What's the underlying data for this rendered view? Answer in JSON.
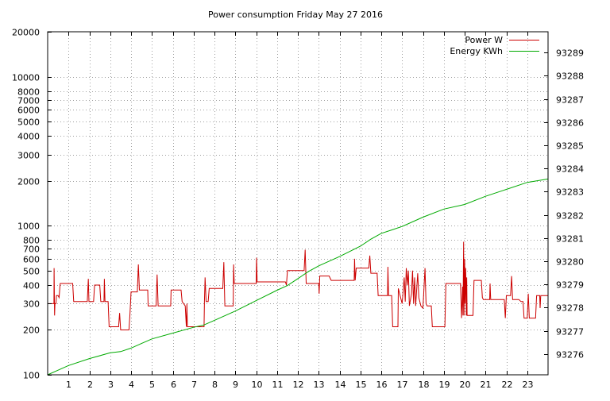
{
  "chart_data": {
    "type": "line",
    "title": "Power consumption Friday May 27 2016",
    "xlabel": "",
    "ylabel": "",
    "y2label": "",
    "xlim": [
      0,
      24
    ],
    "ylim": [
      100,
      20000
    ],
    "yscale": "log",
    "y2lim": [
      93275.1,
      93289.9
    ],
    "grid": true,
    "legend_position": "top-right",
    "x_ticks": [
      1,
      2,
      3,
      4,
      5,
      6,
      7,
      8,
      9,
      10,
      11,
      12,
      13,
      14,
      15,
      16,
      17,
      18,
      19,
      20,
      21,
      22,
      23
    ],
    "y_ticks": [
      100,
      200,
      300,
      400,
      500,
      600,
      700,
      800,
      1000,
      2000,
      3000,
      4000,
      5000,
      6000,
      7000,
      8000,
      10000,
      20000
    ],
    "y2_ticks": [
      93276,
      93277,
      93278,
      93279,
      93280,
      93281,
      93282,
      93283,
      93284,
      93285,
      93286,
      93287,
      93288,
      93289
    ],
    "series": [
      {
        "name": "Power W",
        "axis": "left",
        "color": "#cc0000",
        "points": [
          [
            0.0,
            300
          ],
          [
            0.3,
            300
          ],
          [
            0.31,
            520
          ],
          [
            0.33,
            250
          ],
          [
            0.35,
            300
          ],
          [
            0.4,
            300
          ],
          [
            0.42,
            340
          ],
          [
            0.5,
            340
          ],
          [
            0.55,
            330
          ],
          [
            0.6,
            410
          ],
          [
            1.0,
            410
          ],
          [
            1.2,
            410
          ],
          [
            1.25,
            310
          ],
          [
            1.9,
            310
          ],
          [
            1.95,
            440
          ],
          [
            1.98,
            310
          ],
          [
            2.2,
            310
          ],
          [
            2.25,
            400
          ],
          [
            2.5,
            400
          ],
          [
            2.55,
            310
          ],
          [
            2.7,
            310
          ],
          [
            2.72,
            440
          ],
          [
            2.75,
            310
          ],
          [
            2.9,
            310
          ],
          [
            2.95,
            210
          ],
          [
            3.4,
            210
          ],
          [
            3.45,
            260
          ],
          [
            3.5,
            200
          ],
          [
            3.9,
            200
          ],
          [
            3.95,
            260
          ],
          [
            4.0,
            360
          ],
          [
            4.3,
            360
          ],
          [
            4.35,
            550
          ],
          [
            4.4,
            370
          ],
          [
            4.8,
            370
          ],
          [
            4.82,
            290
          ],
          [
            5.2,
            290
          ],
          [
            5.25,
            470
          ],
          [
            5.3,
            290
          ],
          [
            5.9,
            290
          ],
          [
            5.92,
            370
          ],
          [
            6.4,
            370
          ],
          [
            6.45,
            310
          ],
          [
            6.6,
            290
          ],
          [
            6.65,
            210
          ],
          [
            6.68,
            300
          ],
          [
            6.7,
            210
          ],
          [
            7.5,
            210
          ],
          [
            7.52,
            310
          ],
          [
            7.55,
            450
          ],
          [
            7.6,
            310
          ],
          [
            7.7,
            310
          ],
          [
            7.75,
            380
          ],
          [
            8.4,
            380
          ],
          [
            8.45,
            570
          ],
          [
            8.5,
            290
          ],
          [
            8.9,
            290
          ],
          [
            8.92,
            550
          ],
          [
            8.95,
            410
          ],
          [
            9.5,
            410
          ],
          [
            10.0,
            410
          ],
          [
            10.02,
            610
          ],
          [
            10.05,
            420
          ],
          [
            11.0,
            420
          ],
          [
            11.4,
            420
          ],
          [
            11.45,
            400
          ],
          [
            11.5,
            500
          ],
          [
            12.3,
            500
          ],
          [
            12.35,
            690
          ],
          [
            12.4,
            410
          ],
          [
            12.8,
            410
          ],
          [
            13.0,
            410
          ],
          [
            13.02,
            350
          ],
          [
            13.05,
            460
          ],
          [
            13.5,
            460
          ],
          [
            13.6,
            430
          ],
          [
            14.7,
            430
          ],
          [
            14.72,
            600
          ],
          [
            14.75,
            430
          ],
          [
            14.8,
            520
          ],
          [
            15.4,
            520
          ],
          [
            15.45,
            630
          ],
          [
            15.5,
            480
          ],
          [
            15.8,
            480
          ],
          [
            15.85,
            340
          ],
          [
            16.3,
            340
          ],
          [
            16.32,
            530
          ],
          [
            16.35,
            340
          ],
          [
            16.5,
            340
          ],
          [
            16.55,
            210
          ],
          [
            16.8,
            210
          ],
          [
            16.82,
            380
          ],
          [
            17.0,
            300
          ],
          [
            17.1,
            450
          ],
          [
            17.15,
            310
          ],
          [
            17.2,
            520
          ],
          [
            17.25,
            400
          ],
          [
            17.3,
            500
          ],
          [
            17.35,
            290
          ],
          [
            17.45,
            350
          ],
          [
            17.5,
            500
          ],
          [
            17.55,
            300
          ],
          [
            17.6,
            450
          ],
          [
            17.65,
            290
          ],
          [
            17.75,
            480
          ],
          [
            17.8,
            330
          ],
          [
            17.9,
            290
          ],
          [
            18.0,
            280
          ],
          [
            18.1,
            520
          ],
          [
            18.15,
            300
          ],
          [
            18.2,
            290
          ],
          [
            18.4,
            290
          ],
          [
            18.45,
            210
          ],
          [
            19.0,
            210
          ],
          [
            19.05,
            210
          ],
          [
            19.1,
            410
          ],
          [
            19.8,
            410
          ],
          [
            19.85,
            240
          ],
          [
            19.9,
            390
          ],
          [
            19.92,
            250
          ],
          [
            19.95,
            780
          ],
          [
            19.97,
            250
          ],
          [
            20.0,
            600
          ],
          [
            20.02,
            300
          ],
          [
            20.05,
            520
          ],
          [
            20.08,
            250
          ],
          [
            20.1,
            450
          ],
          [
            20.12,
            250
          ],
          [
            20.2,
            250
          ],
          [
            20.4,
            250
          ],
          [
            20.45,
            430
          ],
          [
            20.8,
            430
          ],
          [
            20.85,
            330
          ],
          [
            20.9,
            320
          ],
          [
            21.0,
            320
          ],
          [
            21.2,
            320
          ],
          [
            21.22,
            410
          ],
          [
            21.25,
            320
          ],
          [
            21.9,
            320
          ],
          [
            21.95,
            240
          ],
          [
            22.0,
            340
          ],
          [
            22.2,
            340
          ],
          [
            22.25,
            460
          ],
          [
            22.3,
            320
          ],
          [
            22.6,
            320
          ],
          [
            22.7,
            310
          ],
          [
            22.8,
            310
          ],
          [
            22.85,
            240
          ],
          [
            23.0,
            240
          ],
          [
            23.05,
            350
          ],
          [
            23.1,
            240
          ],
          [
            23.4,
            240
          ],
          [
            23.45,
            340
          ],
          [
            23.5,
            340
          ],
          [
            23.6,
            340
          ],
          [
            23.62,
            280
          ],
          [
            23.65,
            340
          ],
          [
            24.0,
            340
          ]
        ]
      },
      {
        "name": "Energy KWh",
        "axis": "right",
        "color": "#00aa00",
        "points": [
          [
            0.0,
            93275.1
          ],
          [
            0.5,
            93275.3
          ],
          [
            1.0,
            93275.5
          ],
          [
            2.0,
            93275.8
          ],
          [
            3.0,
            93276.05
          ],
          [
            3.5,
            93276.1
          ],
          [
            4.0,
            93276.25
          ],
          [
            4.5,
            93276.45
          ],
          [
            5.0,
            93276.65
          ],
          [
            6.0,
            93276.9
          ],
          [
            7.0,
            93277.15
          ],
          [
            7.5,
            93277.25
          ],
          [
            8.0,
            93277.45
          ],
          [
            9.0,
            93277.85
          ],
          [
            10.0,
            93278.3
          ],
          [
            11.0,
            93278.75
          ],
          [
            11.5,
            93278.95
          ],
          [
            12.0,
            93279.25
          ],
          [
            12.5,
            93279.55
          ],
          [
            13.0,
            93279.8
          ],
          [
            14.0,
            93280.2
          ],
          [
            15.0,
            93280.65
          ],
          [
            15.5,
            93280.95
          ],
          [
            16.0,
            93281.2
          ],
          [
            16.5,
            93281.35
          ],
          [
            17.0,
            93281.5
          ],
          [
            18.0,
            93281.9
          ],
          [
            19.0,
            93282.25
          ],
          [
            20.0,
            93282.45
          ],
          [
            21.0,
            93282.8
          ],
          [
            22.0,
            93283.1
          ],
          [
            23.0,
            93283.4
          ],
          [
            24.0,
            93283.55
          ]
        ]
      }
    ]
  }
}
